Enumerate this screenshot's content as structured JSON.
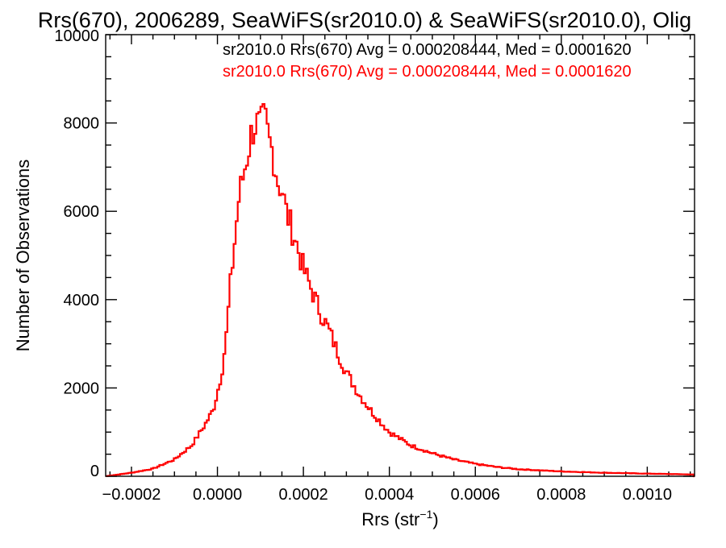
{
  "chart_data": {
    "type": "histogram",
    "title": "Rrs(670), 2006289, SeaWiFS(sr2010.0) & SeaWiFS(sr2010.0), Olig",
    "xlabel": "Rrs (str",
    "xlabel_superscript": "−1",
    "xlabel_close": ")",
    "ylabel": "Number of Observations",
    "xlim": [
      -0.00026,
      0.00111
    ],
    "ylim": [
      0,
      10000
    ],
    "x_ticks": [
      {
        "value": -0.0002,
        "label": "−0.0002"
      },
      {
        "value": 0.0,
        "label": "0.0000"
      },
      {
        "value": 0.0002,
        "label": "0.0002"
      },
      {
        "value": 0.0004,
        "label": "0.0004"
      },
      {
        "value": 0.0006,
        "label": "0.0006"
      },
      {
        "value": 0.0008,
        "label": "0.0008"
      },
      {
        "value": 0.001,
        "label": "0.0010"
      }
    ],
    "y_ticks": [
      {
        "value": 0,
        "label": "0"
      },
      {
        "value": 2000,
        "label": "2000"
      },
      {
        "value": 4000,
        "label": "4000"
      },
      {
        "value": 6000,
        "label": "6000"
      },
      {
        "value": 8000,
        "label": "8000"
      },
      {
        "value": 10000,
        "label": "10000"
      }
    ],
    "legend": [
      {
        "text": "sr2010.0 Rrs(670) Avg = 0.000208444, Med = 0.0001620",
        "color": "#000000"
      },
      {
        "text": "sr2010.0 Rrs(670) Avg = 0.000208444, Med = 0.0001620",
        "color": "#ff0000"
      }
    ],
    "legend_placement": "top-right",
    "bin_width": 4.8e-06,
    "series": [
      {
        "color": "#ff0000",
        "points": [
          [
            -0.00026,
            0
          ],
          [
            -0.0002,
            80
          ],
          [
            -0.00015,
            170
          ],
          [
            -0.0001,
            380
          ],
          [
            -6e-05,
            700
          ],
          [
            -3e-05,
            1150
          ],
          [
            -1e-05,
            1500
          ],
          [
            0.0,
            1900
          ],
          [
            1e-05,
            2350
          ],
          [
            2e-05,
            3100
          ],
          [
            3e-05,
            4300
          ],
          [
            4e-05,
            5300
          ],
          [
            5e-05,
            6300
          ],
          [
            6e-05,
            6800
          ],
          [
            7e-05,
            7300
          ],
          [
            8e-05,
            7800
          ],
          [
            9e-05,
            8000
          ],
          [
            0.0001,
            7900
          ],
          [
            0.00011,
            8100
          ],
          [
            0.00012,
            7600
          ],
          [
            0.00013,
            7300
          ],
          [
            0.00014,
            6700
          ],
          [
            0.00015,
            6500
          ],
          [
            0.00016,
            6000
          ],
          [
            0.00018,
            5400
          ],
          [
            0.0002,
            4700
          ],
          [
            0.00022,
            4200
          ],
          [
            0.00024,
            3700
          ],
          [
            0.00026,
            3300
          ],
          [
            0.00028,
            2800
          ],
          [
            0.0003,
            2350
          ],
          [
            0.00033,
            1850
          ],
          [
            0.00036,
            1450
          ],
          [
            0.0004,
            1000
          ],
          [
            0.00045,
            700
          ],
          [
            0.0005,
            520
          ],
          [
            0.00055,
            380
          ],
          [
            0.0006,
            280
          ],
          [
            0.00065,
            210
          ],
          [
            0.0007,
            160
          ],
          [
            0.0008,
            110
          ],
          [
            0.0009,
            80
          ],
          [
            0.001,
            60
          ],
          [
            0.00111,
            40
          ]
        ]
      }
    ]
  }
}
